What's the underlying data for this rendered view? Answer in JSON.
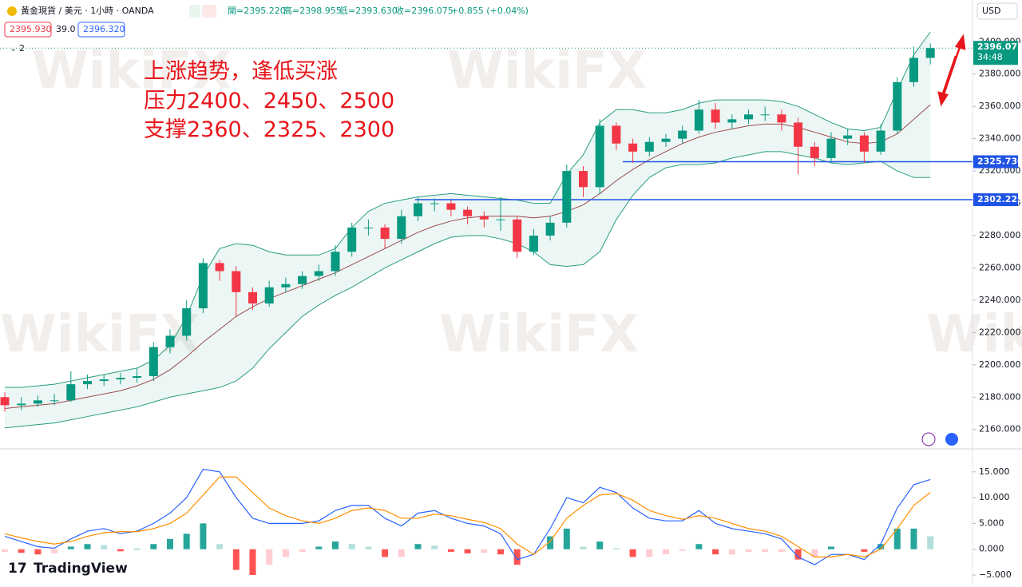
{
  "header": {
    "symbol": "黃金現貨 / 美元 · 1小時 · OANDA",
    "open": "開=2395.220",
    "high": "高=2398.955",
    "low": "低=2393.630",
    "close": "收=2396.075",
    "change": "+0.855 (+0.04%)",
    "bid": "2395.930",
    "spread": "39.0",
    "ask": "2396.320",
    "indicators": "2",
    "currency": "USD",
    "watermark": "WikiFX",
    "brand": "TradingView"
  },
  "chart_data": [
    {
      "type": "candlestick",
      "annotations": [
        "上涨趋势，逢低买涨",
        "压力2400、2450、2500",
        "支撑2360、2325、2300"
      ],
      "ylim": [
        2149,
        2412
      ],
      "yticks": [
        {
          "value": 2160,
          "label": "2160.000"
        },
        {
          "value": 2180,
          "label": "2180.000"
        },
        {
          "value": 2200,
          "label": "2200.000"
        },
        {
          "value": 2220,
          "label": "2220.000"
        },
        {
          "value": 2240,
          "label": "2240.000"
        },
        {
          "value": 2260,
          "label": "2260.000"
        },
        {
          "value": 2280,
          "label": "2280.000"
        },
        {
          "value": 2300,
          "label": "2300.000"
        },
        {
          "value": 2320,
          "label": "2320.000"
        },
        {
          "value": 2340,
          "label": "2340.000"
        },
        {
          "value": 2360,
          "label": "2360.000"
        },
        {
          "value": 2380,
          "label": "2380.000"
        },
        {
          "value": 2400,
          "label": "2400.000"
        }
      ],
      "up_color": "#089981",
      "down_color": "#f23645",
      "ohlc": [
        [
          2180,
          2183,
          2171,
          2175
        ],
        [
          2175,
          2180,
          2172,
          2176
        ],
        [
          2176,
          2181,
          2174,
          2178
        ],
        [
          2178,
          2182,
          2175,
          2178
        ],
        [
          2178,
          2196,
          2177,
          2188
        ],
        [
          2188,
          2194,
          2185,
          2190
        ],
        [
          2190,
          2194,
          2187,
          2191
        ],
        [
          2191,
          2195,
          2188,
          2192
        ],
        [
          2192,
          2198,
          2189,
          2193
        ],
        [
          2193,
          2214,
          2190,
          2211
        ],
        [
          2211,
          2222,
          2207,
          2218
        ],
        [
          2218,
          2240,
          2215,
          2235
        ],
        [
          2235,
          2266,
          2232,
          2263
        ],
        [
          2263,
          2265,
          2252,
          2258
        ],
        [
          2258,
          2261,
          2230,
          2245
        ],
        [
          2245,
          2248,
          2234,
          2238
        ],
        [
          2238,
          2252,
          2236,
          2248
        ],
        [
          2248,
          2254,
          2245,
          2250
        ],
        [
          2250,
          2258,
          2247,
          2255
        ],
        [
          2255,
          2262,
          2252,
          2258
        ],
        [
          2258,
          2274,
          2255,
          2270
        ],
        [
          2270,
          2288,
          2267,
          2285
        ],
        [
          2285,
          2290,
          2280,
          2285
        ],
        [
          2285,
          2287,
          2272,
          2278
        ],
        [
          2278,
          2296,
          2275,
          2292
        ],
        [
          2292,
          2304,
          2289,
          2300
        ],
        [
          2300,
          2303,
          2295,
          2300
        ],
        [
          2300,
          2302,
          2292,
          2296
        ],
        [
          2296,
          2298,
          2287,
          2292
        ],
        [
          2292,
          2295,
          2285,
          2290
        ],
        [
          2290,
          2304,
          2283,
          2290
        ],
        [
          2290,
          2292,
          2266,
          2270
        ],
        [
          2270,
          2284,
          2268,
          2280
        ],
        [
          2280,
          2292,
          2277,
          2288
        ],
        [
          2288,
          2324,
          2285,
          2320
        ],
        [
          2320,
          2323,
          2304,
          2310
        ],
        [
          2310,
          2352,
          2306,
          2348
        ],
        [
          2348,
          2350,
          2333,
          2337
        ],
        [
          2337,
          2340,
          2325,
          2332
        ],
        [
          2332,
          2341,
          2329,
          2338
        ],
        [
          2338,
          2343,
          2335,
          2340
        ],
        [
          2340,
          2348,
          2337,
          2345
        ],
        [
          2345,
          2364,
          2343,
          2358
        ],
        [
          2358,
          2362,
          2346,
          2350
        ],
        [
          2350,
          2355,
          2346,
          2352
        ],
        [
          2352,
          2358,
          2349,
          2355
        ],
        [
          2355,
          2360,
          2351,
          2355
        ],
        [
          2355,
          2358,
          2345,
          2350
        ],
        [
          2350,
          2353,
          2318,
          2335
        ],
        [
          2335,
          2338,
          2323,
          2328
        ],
        [
          2328,
          2344,
          2325,
          2340
        ],
        [
          2340,
          2346,
          2336,
          2342
        ],
        [
          2342,
          2344,
          2325,
          2332
        ],
        [
          2332,
          2349,
          2330,
          2345
        ],
        [
          2345,
          2378,
          2343,
          2375
        ],
        [
          2375,
          2397,
          2372,
          2390
        ],
        [
          2390,
          2398.955,
          2386,
          2396.075
        ]
      ],
      "bands": {
        "line_color": "#2a9d7f",
        "fill": "#089981",
        "middle_color": "#9c4a4a",
        "upper": [
          2186,
          2186,
          2187,
          2188,
          2190,
          2192,
          2194,
          2196,
          2198,
          2203,
          2212,
          2230,
          2255,
          2272,
          2275,
          2274,
          2270,
          2268,
          2268,
          2268,
          2272,
          2285,
          2295,
          2300,
          2302,
          2304,
          2305,
          2306,
          2305,
          2304,
          2303,
          2302,
          2300,
          2300,
          2318,
          2330,
          2350,
          2358,
          2358,
          2356,
          2356,
          2358,
          2362,
          2364,
          2364,
          2364,
          2364,
          2363,
          2360,
          2355,
          2350,
          2346,
          2345,
          2347,
          2370,
          2392,
          2406
        ],
        "middle": [
          2173,
          2174,
          2175,
          2176,
          2178,
          2180,
          2182,
          2184,
          2187,
          2191,
          2197,
          2205,
          2214,
          2222,
          2230,
          2236,
          2241,
          2245,
          2249,
          2253,
          2257,
          2262,
          2267,
          2272,
          2277,
          2282,
          2286,
          2289,
          2291,
          2292,
          2292,
          2292,
          2291,
          2292,
          2295,
          2299,
          2306,
          2314,
          2321,
          2327,
          2332,
          2337,
          2341,
          2344,
          2346,
          2348,
          2349,
          2349,
          2347,
          2344,
          2341,
          2338,
          2337,
          2338,
          2343,
          2352,
          2361
        ],
        "lower": [
          2161,
          2162,
          2163,
          2164,
          2166,
          2168,
          2170,
          2172,
          2174,
          2177,
          2180,
          2182,
          2184,
          2186,
          2190,
          2198,
          2210,
          2220,
          2230,
          2237,
          2243,
          2248,
          2254,
          2260,
          2265,
          2270,
          2275,
          2279,
          2280,
          2280,
          2278,
          2275,
          2270,
          2262,
          2261,
          2262,
          2270,
          2290,
          2305,
          2316,
          2322,
          2324,
          2324,
          2325,
          2328,
          2330,
          2332,
          2332,
          2330,
          2328,
          2325,
          2324,
          2325,
          2326,
          2320,
          2316,
          2316
        ]
      },
      "levels": [
        {
          "value": 2325.73,
          "label": "2325.730"
        },
        {
          "value": 2302.225,
          "label": "2302.225"
        }
      ],
      "level_color": "#1e53e5",
      "last_price": {
        "value": 2396.075,
        "label": "2396.075",
        "countdown": "34:48"
      }
    },
    {
      "type": "macd",
      "ylim": [
        -6.7,
        19.3
      ],
      "yticks": [
        {
          "value": 15,
          "label": "15.000"
        },
        {
          "value": 10,
          "label": "10.000"
        },
        {
          "value": 5,
          "label": "5.000"
        },
        {
          "value": 0,
          "label": "0.000"
        },
        {
          "value": -5,
          "label": "−5.000"
        }
      ],
      "macd_color": "#2962ff",
      "signal_color": "#ff8f00",
      "hist_colors": [
        "#26a69a",
        "#b2dfdb",
        "#ffcdd2",
        "#ff5252"
      ],
      "macd": [
        2.5,
        1.5,
        0.5,
        0.2,
        2,
        3.5,
        4,
        3,
        3.5,
        5,
        7,
        10,
        15.5,
        15,
        10,
        6,
        5,
        5,
        5,
        5.5,
        7.5,
        8.5,
        8.5,
        6,
        4.5,
        7,
        7.5,
        6,
        5,
        4.5,
        3,
        -2,
        -1,
        4,
        10,
        9,
        12,
        11,
        8,
        6,
        5.5,
        5.5,
        7.5,
        5,
        4,
        3.5,
        3,
        2,
        -1.5,
        -3,
        -1,
        -1,
        -2,
        1,
        8,
        12.5,
        13.5
      ],
      "signal": [
        3,
        2.2,
        1.5,
        1,
        1.5,
        2.5,
        3.2,
        3.4,
        3.4,
        4,
        5,
        7,
        10.5,
        14,
        14,
        11,
        8,
        6.5,
        5.5,
        5,
        6,
        7.5,
        8,
        7.5,
        6,
        6,
        6.8,
        6.5,
        5.8,
        5.2,
        4,
        1,
        -1,
        1.5,
        6,
        8.5,
        10.5,
        10.8,
        9.5,
        7.5,
        6.5,
        5.8,
        6.5,
        6,
        5,
        4,
        3.5,
        2.5,
        0.5,
        -1.5,
        -1.5,
        -1,
        -1.5,
        0,
        4,
        8.5,
        11
      ],
      "histogram": [
        -0.5,
        -0.7,
        -1,
        -0.8,
        0.5,
        1,
        0.8,
        -0.4,
        0.1,
        1,
        2,
        3,
        5,
        1,
        -4,
        -5,
        -3,
        -1.5,
        -0.5,
        0.5,
        1.5,
        1,
        0.5,
        -1.5,
        -1.5,
        1,
        0.7,
        -0.5,
        -0.8,
        -0.7,
        -1,
        -3,
        0,
        2.5,
        4,
        0.5,
        1.5,
        0.2,
        -1.5,
        -1.5,
        -1,
        -0.3,
        1,
        -1,
        -1,
        -0.5,
        -0.5,
        -0.5,
        -2,
        -1.5,
        0.5,
        0,
        -0.5,
        1,
        4,
        4,
        2.5
      ]
    }
  ]
}
